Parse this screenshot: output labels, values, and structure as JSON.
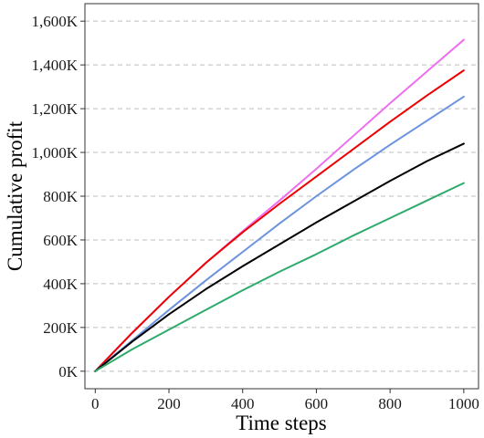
{
  "chart_data": {
    "type": "line",
    "xlabel": "Time steps",
    "ylabel": "Cumulative profit",
    "xlim": [
      -28,
      1040
    ],
    "ylim": [
      -80000,
      1680000
    ],
    "x_ticks": [
      0,
      200,
      400,
      600,
      800,
      1000
    ],
    "x_tick_labels": [
      "0",
      "200",
      "400",
      "600",
      "800",
      "1000"
    ],
    "y_ticks": [
      0,
      200000,
      400000,
      600000,
      800000,
      1000000,
      1200000,
      1400000,
      1600000
    ],
    "y_tick_labels": [
      "0K",
      "200K",
      "400K",
      "600K",
      "800K",
      "1,000K",
      "1,200K",
      "1,400K",
      "1,600K"
    ],
    "grid": "horizontal dashed",
    "legend": "none",
    "x": [
      0,
      100,
      200,
      300,
      400,
      500,
      600,
      700,
      800,
      900,
      1000
    ],
    "series": [
      {
        "color": "#ee6fef",
        "values": [
          0,
          175000,
          340000,
          495000,
          640000,
          780000,
          925000,
          1075000,
          1225000,
          1370000,
          1515000
        ]
      },
      {
        "color": "#ee0000",
        "values": [
          0,
          175000,
          340000,
          495000,
          635000,
          765000,
          890000,
          1015000,
          1140000,
          1260000,
          1375000
        ]
      },
      {
        "color": "#6b93e0",
        "values": [
          0,
          140000,
          280000,
          415000,
          545000,
          675000,
          800000,
          920000,
          1035000,
          1145000,
          1255000
        ]
      },
      {
        "color": "#000000",
        "values": [
          0,
          135000,
          260000,
          375000,
          480000,
          580000,
          680000,
          775000,
          870000,
          960000,
          1040000
        ]
      },
      {
        "color": "#2eaa6b",
        "values": [
          0,
          100000,
          190000,
          280000,
          370000,
          455000,
          535000,
          620000,
          700000,
          780000,
          860000
        ]
      }
    ]
  }
}
